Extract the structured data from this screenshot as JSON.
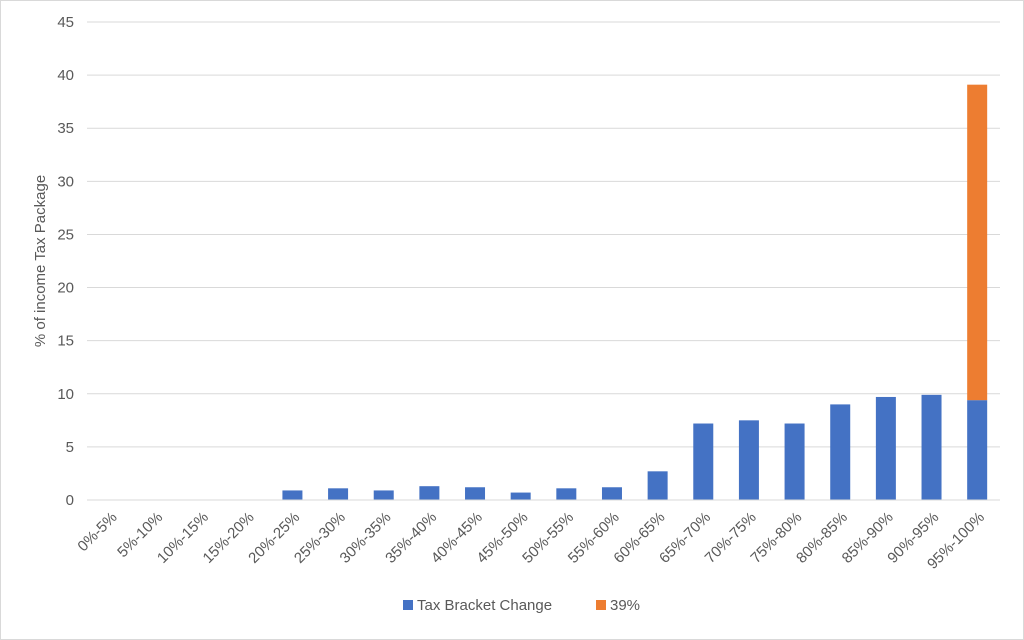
{
  "chart_data": {
    "type": "bar",
    "stacked": true,
    "title": "",
    "xlabel": "",
    "ylabel": "% of income Tax Package",
    "ylim": [
      0,
      45
    ],
    "yticks": [
      0,
      5,
      10,
      15,
      20,
      25,
      30,
      35,
      40,
      45
    ],
    "grid": true,
    "legend_position": "bottom",
    "categories": [
      "0%-5%",
      "5%-10%",
      "10%-15%",
      "15%-20%",
      "20%-25%",
      "25%-30%",
      "30%-35%",
      "35%-40%",
      "40%-45%",
      "45%-50%",
      "50%-55%",
      "55%-60%",
      "60%-65%",
      "65%-70%",
      "70%-75%",
      "75%-80%",
      "80%-85%",
      "85%-90%",
      "90%-95%",
      "95%-100%"
    ],
    "series": [
      {
        "name": "Tax Bracket Change",
        "color": "#4472c4",
        "values": [
          0,
          0,
          0,
          0,
          0.9,
          1.1,
          0.9,
          1.3,
          1.2,
          0.7,
          1.1,
          1.2,
          2.7,
          7.2,
          7.5,
          7.2,
          9.0,
          9.7,
          9.9,
          9.4
        ]
      },
      {
        "name": "39%",
        "color": "#ed7d31",
        "values": [
          0,
          0,
          0,
          0,
          0,
          0,
          0,
          0,
          0,
          0,
          0,
          0,
          0,
          0,
          0,
          0,
          0,
          0,
          0,
          29.7
        ]
      }
    ]
  }
}
